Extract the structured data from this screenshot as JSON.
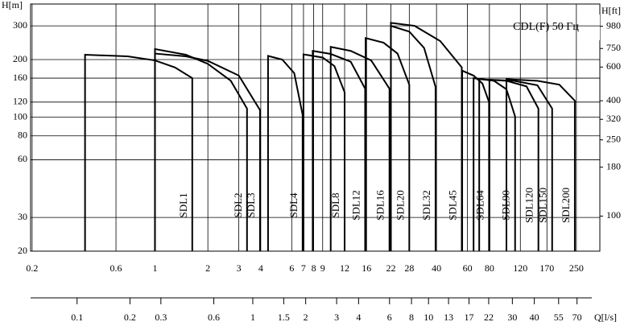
{
  "chart_data": {
    "type": "pump-curves",
    "annotation": "CDL(F) 50 Гц",
    "y_label": "H[m]",
    "y2_label": "H[ft]",
    "x2_label": "Q[l/s]",
    "log_x": true,
    "log_y": true,
    "grid": true,
    "line_color": "#000000",
    "xlim": [
      0.196,
      340
    ],
    "xticks": [
      0.2,
      0.6,
      1,
      2,
      3,
      4,
      6,
      7,
      8,
      9,
      12,
      16,
      22,
      28,
      40,
      60,
      80,
      120,
      170,
      250
    ],
    "ylim": [
      20,
      390
    ],
    "yticks": [
      20,
      30,
      60,
      80,
      100,
      120,
      160,
      200,
      300
    ],
    "y2lim": [
      65.6,
      1280
    ],
    "y2ticks": [
      100,
      180,
      250,
      320,
      400,
      600,
      750,
      980
    ],
    "x2lim": [
      0.0544,
      94.4
    ],
    "x2ticks": [
      0.1,
      0.2,
      0.3,
      0.6,
      1,
      1.5,
      2,
      3,
      4,
      6,
      8,
      10,
      13,
      17,
      22,
      30,
      40,
      55,
      70
    ],
    "series": [
      {
        "name": "SDL1",
        "q": [
          0.4,
          0.7,
          1.0,
          1.3,
          1.63
        ],
        "h": [
          212,
          208,
          198,
          182,
          160
        ]
      },
      {
        "name": "SDL2",
        "q": [
          1,
          1.5,
          2,
          2.7,
          3.34
        ],
        "h": [
          227,
          212,
          190,
          155,
          111
        ]
      },
      {
        "name": "SDL3",
        "q": [
          1,
          1.5,
          2,
          3,
          3.96
        ],
        "h": [
          215,
          208,
          197,
          165,
          109
        ]
      },
      {
        "name": "SDL4",
        "q": [
          4.4,
          5.3,
          6.2,
          6.92
        ],
        "h": [
          209,
          200,
          170,
          103
        ]
      },
      {
        "name": "SDL8",
        "q": [
          7,
          9,
          10.5,
          12
        ],
        "h": [
          213,
          205,
          185,
          135
        ]
      },
      {
        "name": "SDL12",
        "q": [
          7.9,
          10,
          13,
          15.7
        ],
        "h": [
          222,
          214,
          195,
          141
        ]
      },
      {
        "name": "SDL16",
        "q": [
          10,
          13,
          17,
          21.6
        ],
        "h": [
          233,
          222,
          198,
          141
        ]
      },
      {
        "name": "SDL20",
        "q": [
          15.8,
          20,
          24,
          28
        ],
        "h": [
          259,
          245,
          215,
          148
        ]
      },
      {
        "name": "SDL32",
        "q": [
          22,
          28,
          34,
          39.5
        ],
        "h": [
          300,
          280,
          230,
          144
        ]
      },
      {
        "name": "SDL45",
        "q": [
          22,
          30,
          42,
          55.7
        ],
        "h": [
          311,
          300,
          250,
          182
        ]
      },
      {
        "name": "SDL64",
        "q": [
          56,
          65,
          73,
          79.6
        ],
        "h": [
          175,
          165,
          150,
          120
        ]
      },
      {
        "name": "SDL90",
        "q": [
          65,
          85,
          100,
          112
        ],
        "h": [
          160,
          155,
          140,
          101
        ]
      },
      {
        "name": "SDL120",
        "q": [
          70,
          100,
          130,
          152
        ],
        "h": [
          158,
          155,
          145,
          111
        ]
      },
      {
        "name": "SDL150",
        "q": [
          80,
          110,
          150,
          182
        ],
        "h": [
          157,
          155,
          147,
          111
        ]
      },
      {
        "name": "SDL200",
        "q": [
          100,
          150,
          200,
          245
        ],
        "h": [
          158,
          155,
          148,
          122
        ]
      }
    ]
  }
}
